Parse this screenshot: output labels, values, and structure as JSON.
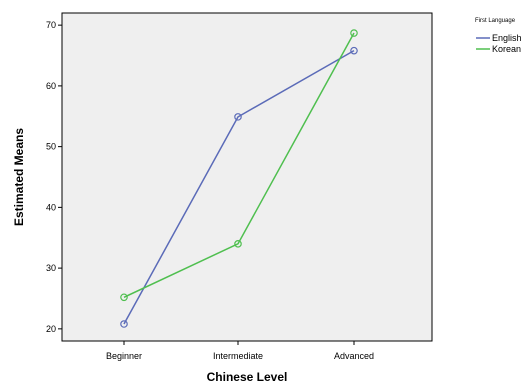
{
  "chart_data": {
    "type": "line",
    "title": "",
    "xlabel": "Chinese Level",
    "ylabel": "Estimated Means",
    "categories": [
      "Beginner",
      "Intermediate",
      "Advanced"
    ],
    "ylim": [
      18,
      72
    ],
    "yticks": [
      20,
      30,
      40,
      50,
      60,
      70
    ],
    "grid": false,
    "legend": {
      "title": "First Language",
      "position": "top-right"
    },
    "series": [
      {
        "name": "English",
        "color": "#5b6bb8",
        "values": [
          20.8,
          54.9,
          65.8
        ]
      },
      {
        "name": "Korean",
        "color": "#4fbf4f",
        "values": [
          25.2,
          34.0,
          68.7
        ]
      }
    ],
    "plot_background": "#efefef"
  }
}
